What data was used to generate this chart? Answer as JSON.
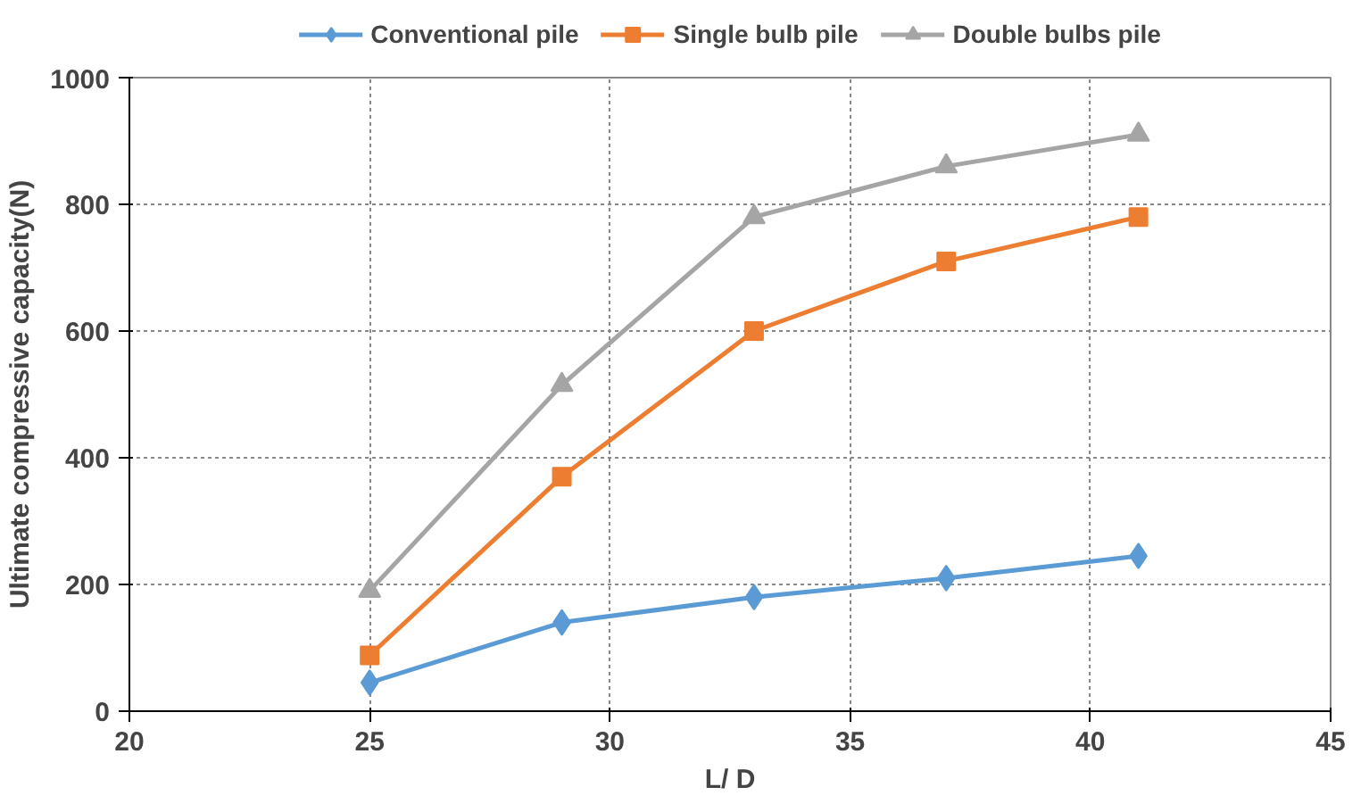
{
  "chart_data": {
    "type": "line",
    "xlabel": "L/ D",
    "ylabel": "Ultimate compressive capacity(N)",
    "x": [
      25,
      29,
      33,
      37,
      41
    ],
    "series": [
      {
        "name": "Conventional pile",
        "color": "#5b9bd5",
        "marker": "diamond",
        "values": [
          45,
          140,
          180,
          210,
          245
        ]
      },
      {
        "name": "Single bulb pile",
        "color": "#ed7d31",
        "marker": "square",
        "values": [
          88,
          370,
          600,
          710,
          780
        ]
      },
      {
        "name": "Double bulbs pile",
        "color": "#a5a5a5",
        "marker": "triangle",
        "values": [
          190,
          515,
          780,
          860,
          910
        ]
      }
    ],
    "xlim": [
      20,
      45
    ],
    "xticks": [
      20,
      25,
      30,
      35,
      40,
      45
    ],
    "ylim": [
      0,
      1000
    ],
    "yticks": [
      0,
      200,
      400,
      600,
      800,
      1000
    ],
    "grid": true,
    "legend": "top",
    "line_style": "solid"
  }
}
